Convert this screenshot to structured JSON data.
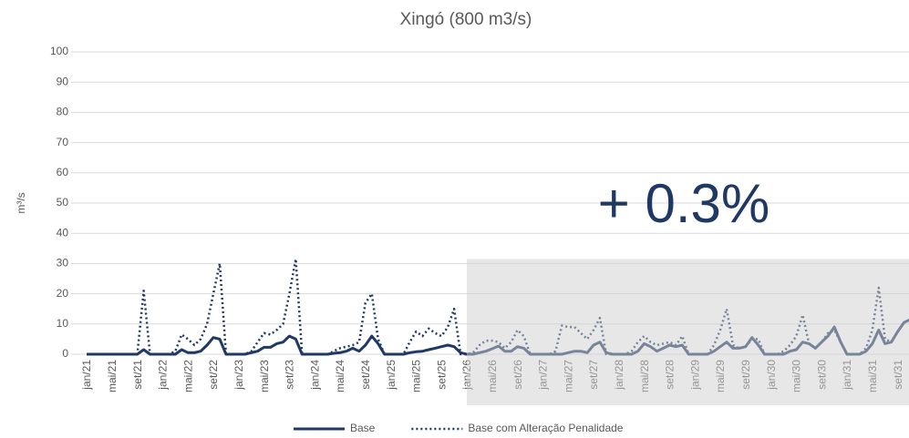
{
  "chart_data": {
    "type": "line",
    "title": "Xingó (800 m3/s)",
    "y_label": "m³/s",
    "annotation": "+ 0.3%",
    "categories": [
      "jan/21",
      null,
      null,
      null,
      "mai/21",
      null,
      null,
      null,
      "set/21",
      null,
      null,
      null,
      "jan/22",
      null,
      null,
      null,
      "mai/22",
      null,
      null,
      null,
      "set/22",
      null,
      null,
      null,
      "jan/23",
      null,
      null,
      null,
      "mai/23",
      null,
      null,
      null,
      "set/23",
      null,
      null,
      null,
      "jan/24",
      null,
      null,
      null,
      "mai/24",
      null,
      null,
      null,
      "set/24",
      null,
      null,
      null,
      "jan/25",
      null,
      null,
      null,
      "mai/25",
      null,
      null,
      null,
      "set/25",
      null,
      null,
      null,
      "jan/26",
      null,
      null,
      null,
      "mai/26",
      null,
      null,
      null,
      "set/26",
      null,
      null,
      null,
      "jan/27",
      null,
      null,
      null,
      "mai/27",
      null,
      null,
      null,
      "set/27",
      null,
      null,
      null,
      "jan/28",
      null,
      null,
      null,
      "mai/28",
      null,
      null,
      null,
      "set/28",
      null,
      null,
      null,
      "jan/29",
      null,
      null,
      null,
      "mai/29",
      null,
      null,
      null,
      "set/29",
      null,
      null,
      null,
      "jan/30",
      null,
      null,
      null,
      "mai/30",
      null,
      null,
      null,
      "set/30",
      null,
      null,
      null,
      "jan/31",
      null,
      null,
      null,
      "mai/31",
      null,
      null,
      null,
      "set/31",
      null,
      null,
      null
    ],
    "series": [
      {
        "name": "Base",
        "color": "#203864",
        "dash": false,
        "values": [
          0,
          0,
          0,
          0,
          0,
          0,
          0,
          0,
          0,
          1.5,
          0,
          0,
          0,
          0,
          0,
          1.5,
          0.5,
          0.5,
          1,
          3,
          5.5,
          5,
          0,
          0,
          0,
          0,
          0.5,
          1,
          2.3,
          2.3,
          3.5,
          4,
          6,
          5,
          0,
          0,
          0,
          0,
          0,
          0.3,
          0.5,
          1,
          2,
          1,
          3,
          6,
          3.5,
          0,
          0,
          0,
          0,
          0.5,
          0.8,
          1,
          1.5,
          2,
          2.5,
          3,
          2.5,
          0.5,
          0,
          0,
          0.5,
          1,
          1.8,
          2.7,
          1,
          1,
          2.5,
          2,
          0,
          0,
          0,
          0,
          0,
          0,
          0.5,
          1,
          1,
          0.5,
          3,
          4,
          0.5,
          0,
          0,
          0,
          0,
          1,
          3.5,
          2.5,
          1,
          2,
          3,
          2.5,
          3,
          0,
          0,
          0,
          0,
          1,
          2.5,
          4,
          2,
          2,
          2.5,
          5.5,
          3,
          0,
          0,
          0,
          0,
          1,
          1.5,
          4,
          3.5,
          2,
          4,
          6,
          9,
          4,
          0,
          0,
          0,
          1,
          3.5,
          8,
          3.5,
          4,
          7.5,
          10.5,
          11.5,
          5
        ]
      },
      {
        "name": "Base com Alteração Penalidade",
        "color": "#203864",
        "dash": true,
        "values": [
          0,
          0,
          0,
          0,
          0,
          0,
          0,
          0,
          0,
          21,
          0,
          0,
          0,
          0,
          1,
          6.5,
          5,
          3,
          5,
          10,
          20,
          30,
          0,
          0,
          0,
          0,
          1,
          4,
          7,
          6.5,
          8,
          10,
          20,
          31.5,
          0,
          0,
          0,
          0,
          0,
          1,
          2,
          2.5,
          3,
          4,
          17,
          20,
          5,
          0,
          0,
          0,
          0,
          4,
          7.5,
          6,
          8.5,
          7,
          6,
          9,
          15,
          0,
          0,
          0.5,
          3,
          4.5,
          4.5,
          4,
          2,
          4,
          8,
          6,
          0,
          0,
          0,
          0,
          1,
          9.5,
          9,
          9,
          7,
          5,
          8,
          12,
          0,
          0,
          0,
          0,
          1,
          4,
          6,
          4,
          3,
          3.5,
          4,
          3,
          6,
          0,
          0,
          0,
          0,
          3,
          8,
          15,
          3,
          2,
          2.5,
          5,
          5,
          0,
          0,
          0,
          1,
          3,
          6,
          13,
          3.5,
          2,
          4,
          7,
          8,
          4,
          0,
          0,
          0,
          2,
          8,
          22,
          5,
          4,
          7.5,
          10.5,
          11.5,
          5
        ]
      }
    ],
    "ylim": [
      0,
      100
    ],
    "yticks": [
      0,
      10,
      20,
      30,
      40,
      50,
      60,
      70,
      80,
      90,
      100
    ],
    "grid": true,
    "legend": "bottom"
  }
}
